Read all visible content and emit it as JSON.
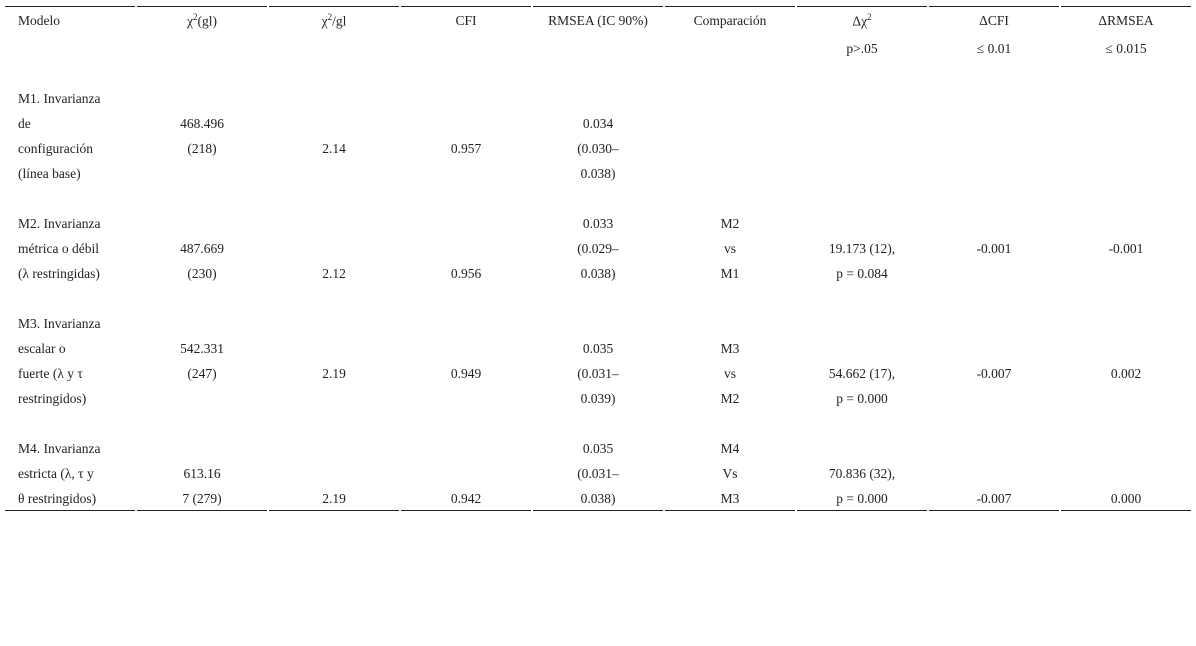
{
  "header": [
    {
      "lines": [
        "Modelo"
      ]
    },
    {
      "lines": [
        {
          "base": "χ",
          "sup": "2",
          "rest": "(gl)"
        }
      ]
    },
    {
      "lines": [
        {
          "base": "χ",
          "sup": "2",
          "rest": "/gl"
        }
      ]
    },
    {
      "lines": [
        "CFI"
      ]
    },
    {
      "lines": [
        "RMSEA (IC 90%)"
      ]
    },
    {
      "lines": [
        "Comparación"
      ]
    },
    {
      "lines": [
        {
          "base": "Δχ",
          "sup": "2"
        },
        "p>.05"
      ]
    },
    {
      "lines": [
        "ΔCFI",
        "≤ 0.01"
      ]
    },
    {
      "lines": [
        "ΔRMSEA",
        "≤ 0.015"
      ]
    }
  ],
  "rows": [
    [
      [
        "M1. Invarianza",
        "de",
        "configuración",
        "(línea base)"
      ],
      [
        "468.496",
        "(218)"
      ],
      [
        "2.14"
      ],
      [
        "0.957"
      ],
      [
        "0.034",
        "(0.030–",
        "0.038)"
      ],
      null,
      null,
      null,
      null
    ],
    [
      [
        "M2. Invarianza",
        "métrica o débil",
        "(λ restringidas)"
      ],
      [
        "487.669",
        "(230)"
      ],
      [
        "2.12"
      ],
      [
        "0.956"
      ],
      [
        "0.033",
        "(0.029–",
        "0.038)"
      ],
      [
        "M2",
        "vs",
        "M1"
      ],
      [
        "19.173 (12),",
        "p = 0.084"
      ],
      [
        "-0.001"
      ],
      [
        "-0.001"
      ]
    ],
    [
      [
        "M3. Invarianza",
        "escalar o",
        "fuerte (λ y τ",
        "restringidos)"
      ],
      [
        "542.331",
        "(247)"
      ],
      [
        "2.19"
      ],
      [
        "0.949"
      ],
      [
        "0.035",
        "(0.031–",
        "0.039)"
      ],
      [
        "M3",
        "vs",
        "M2"
      ],
      [
        "54.662 (17),",
        "p = 0.000"
      ],
      [
        "-0.007"
      ],
      [
        "0.002"
      ]
    ],
    [
      [
        "M4. Invarianza",
        "estricta (λ, τ y",
        "θ restringidos)"
      ],
      [
        "613.16",
        "7 (279)"
      ],
      [
        "2.19"
      ],
      [
        "0.942"
      ],
      [
        "0.035",
        "(0.031–",
        "0.038)"
      ],
      [
        "M4",
        "Vs",
        "M3"
      ],
      [
        "70.836 (32),",
        "p = 0.000"
      ],
      [
        "-0.007"
      ],
      [
        "0.000"
      ]
    ]
  ]
}
